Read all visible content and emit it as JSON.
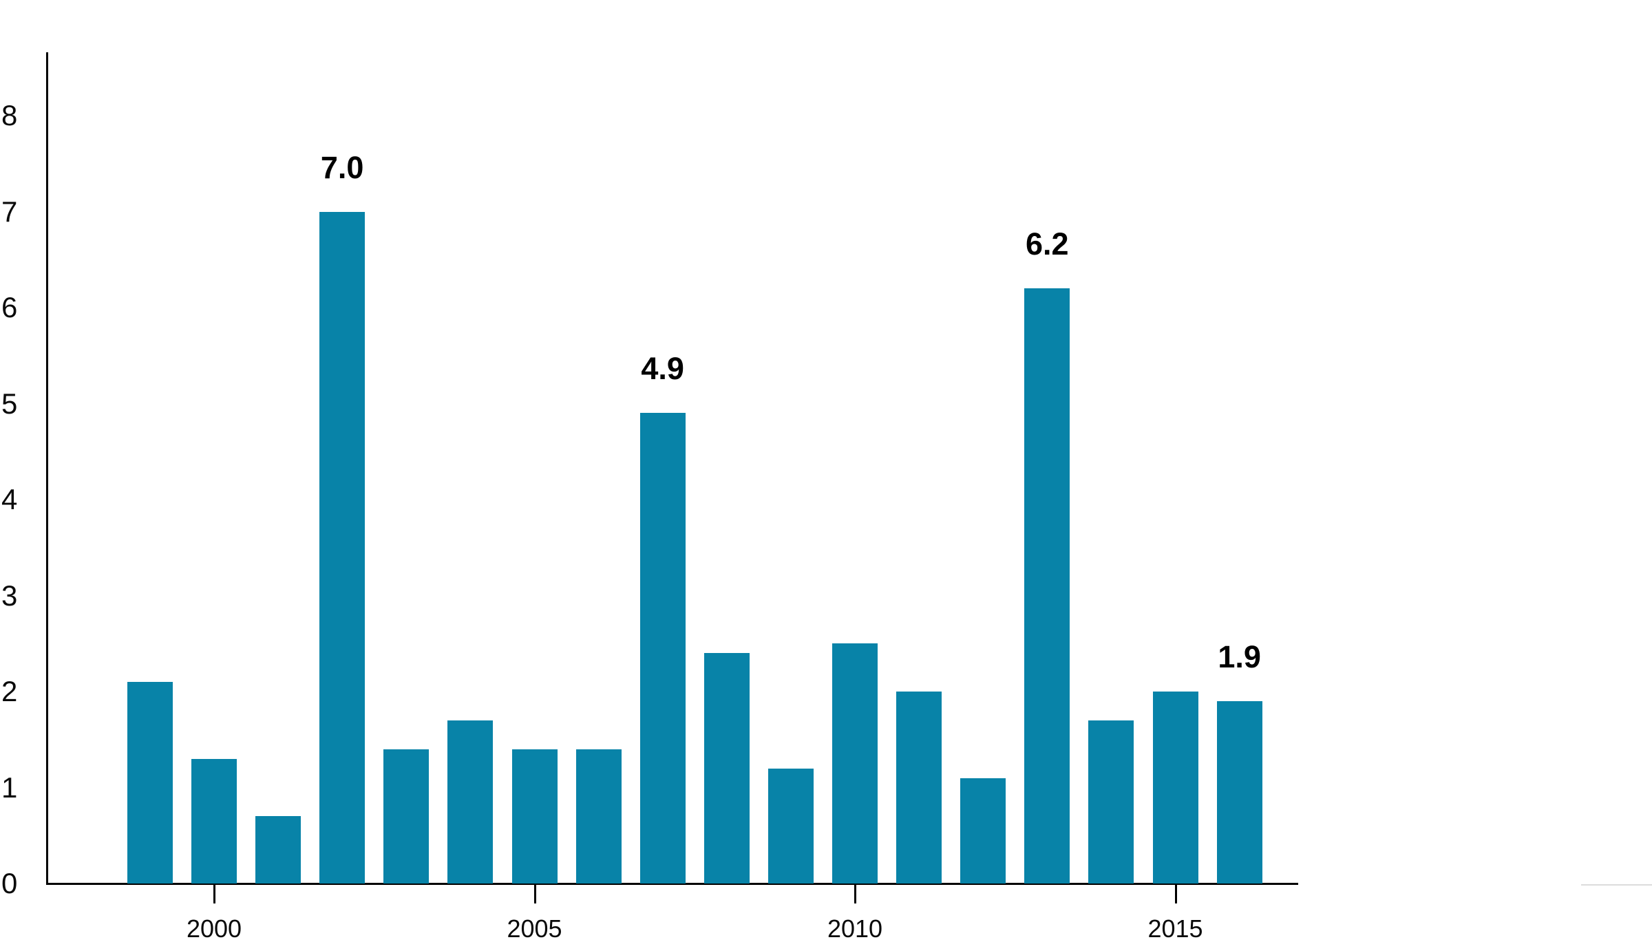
{
  "chart_data": {
    "type": "bar",
    "title": "",
    "xlabel": "",
    "ylabel": "",
    "categories": [
      1999,
      2000,
      2001,
      2002,
      2003,
      2004,
      2005,
      2006,
      2007,
      2008,
      2009,
      2010,
      2011,
      2012,
      2013,
      2014,
      2015,
      2016
    ],
    "values": [
      2.1,
      1.3,
      0.7,
      7.0,
      1.4,
      1.7,
      1.4,
      1.4,
      4.9,
      2.4,
      1.2,
      2.5,
      2.0,
      1.1,
      6.2,
      1.7,
      2.0,
      1.9
    ],
    "bar_labels": {
      "2002": "7.0",
      "2007": "4.9",
      "2013": "6.2",
      "2016": "1.9"
    },
    "y_ticks": [
      0,
      1,
      2,
      3,
      4,
      5,
      6,
      7,
      8
    ],
    "x_ticks": [
      2000,
      2005,
      2010,
      2015
    ],
    "ylim": [
      0,
      8.66
    ],
    "grid": false,
    "legend": "none",
    "bar_color": "#0883a8",
    "axis_color": "#000000",
    "text_color": "#0a0a0a",
    "value_label_color": "#000000"
  }
}
